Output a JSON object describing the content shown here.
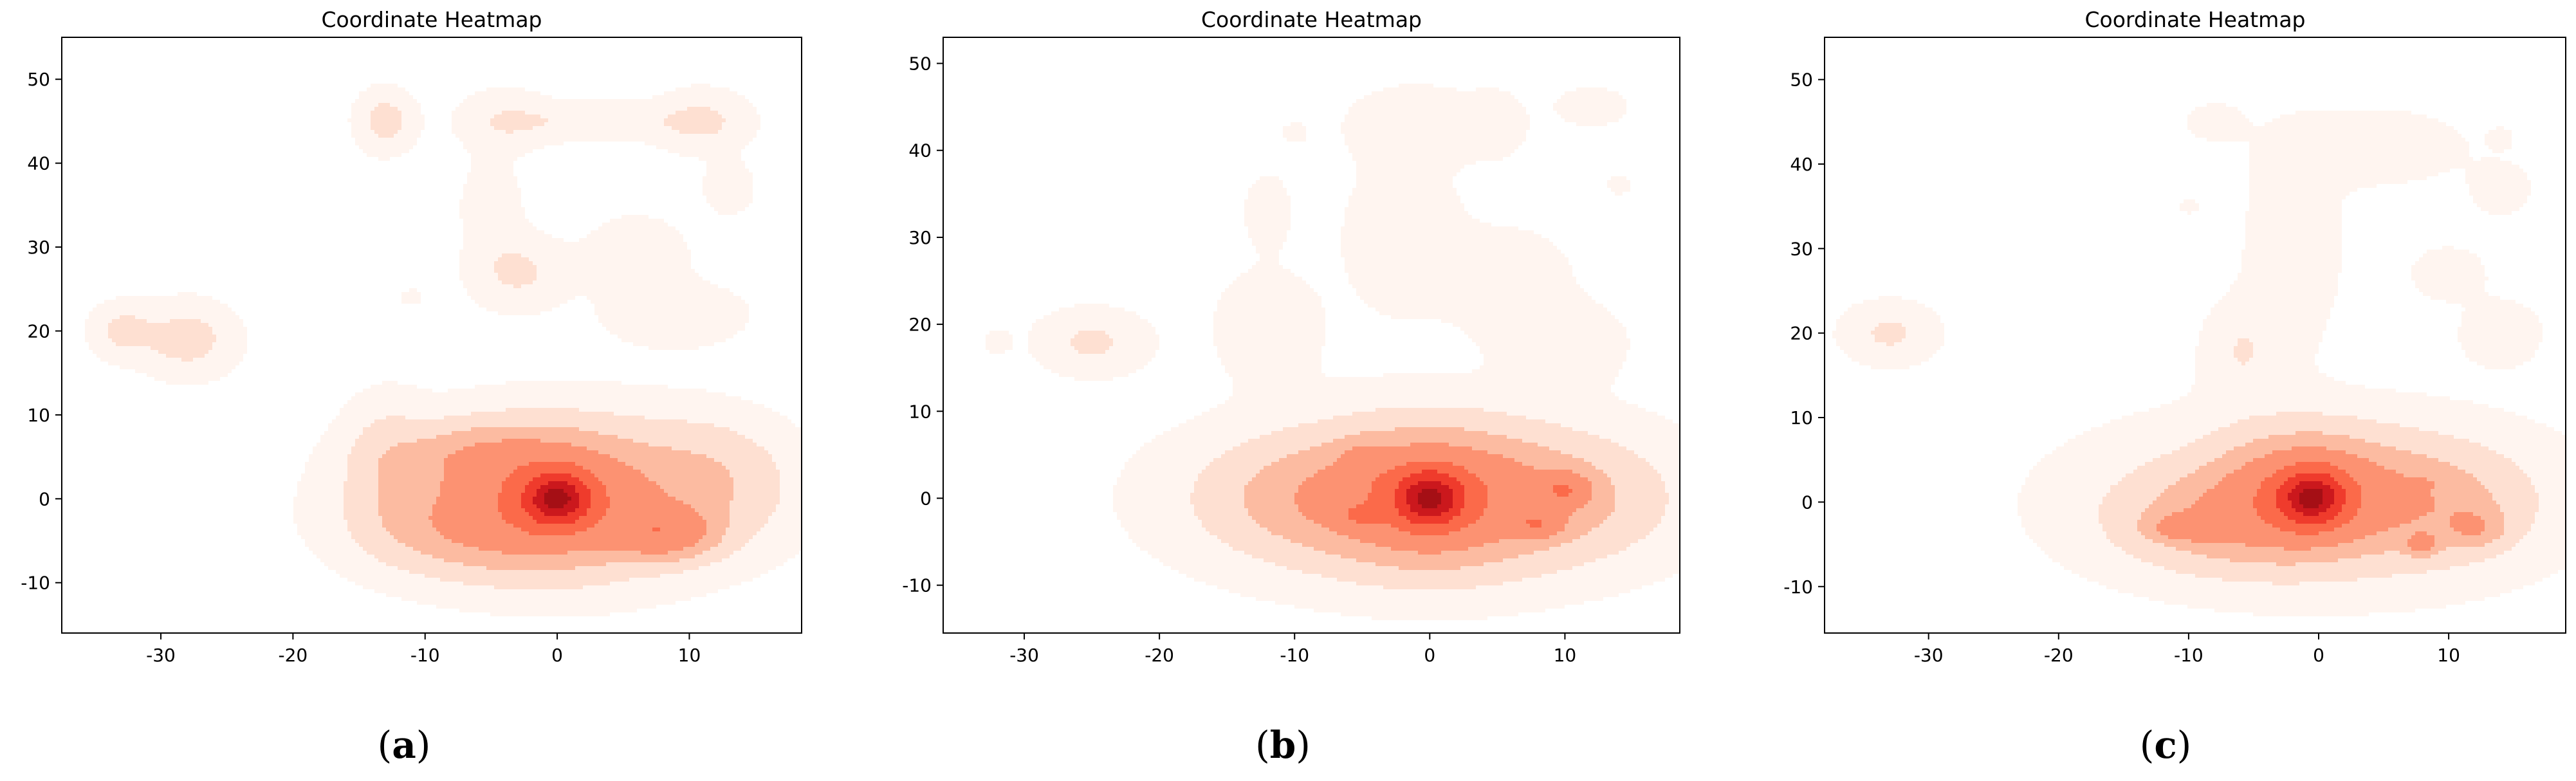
{
  "chart_data": [
    {
      "type": "heatmap",
      "panel_label": "(a)",
      "caption": {
        "open": "(",
        "letter": "a",
        "close": ")"
      },
      "title": "Coordinate Heatmap",
      "xlabel": "",
      "ylabel": "",
      "xlim": [
        -37.5,
        18.5
      ],
      "ylim": [
        -16,
        55
      ],
      "xticks": [
        -30,
        -20,
        -10,
        0,
        10
      ],
      "yticks": [
        -10,
        0,
        10,
        20,
        30,
        40,
        50
      ],
      "grid": false,
      "colormap": [
        "#fff5f0",
        "#fee0d2",
        "#fcbba1",
        "#fc9272",
        "#fb6a4a",
        "#ef3b2c",
        "#cb181d",
        "#a50f15"
      ],
      "density_peak": {
        "x": 0,
        "y": 0
      },
      "density_components": [
        {
          "x": 0,
          "y": 0,
          "sx": 1.6,
          "sy": 2.0,
          "w": 1.0
        },
        {
          "x": 0,
          "y": 0,
          "sx": 4.5,
          "sy": 4.5,
          "w": 0.32
        },
        {
          "x": 8,
          "y": -4,
          "sx": 2.5,
          "sy": 2.0,
          "w": 0.25
        },
        {
          "x": -7,
          "y": -3,
          "sx": 4.5,
          "sy": 3.5,
          "w": 0.13
        },
        {
          "x": -6,
          "y": 5,
          "sx": 4.0,
          "sy": 2.5,
          "w": 0.12
        },
        {
          "x": 11,
          "y": 2,
          "sx": 4.0,
          "sy": 4.5,
          "w": 0.08
        },
        {
          "x": 0,
          "y": 0,
          "sx": 10,
          "sy": 7,
          "w": 0.07
        },
        {
          "x": -13,
          "y": 4,
          "sx": 2.0,
          "sy": 5.0,
          "w": 0.05
        },
        {
          "x": -28,
          "y": 19,
          "sx": 2.5,
          "sy": 3.0,
          "w": 0.06
        },
        {
          "x": -33,
          "y": 20,
          "sx": 1.6,
          "sy": 2.2,
          "w": 0.05
        },
        {
          "x": -13,
          "y": 45,
          "sx": 1.5,
          "sy": 2.5,
          "w": 0.06
        },
        {
          "x": -11,
          "y": 24,
          "sx": 0.5,
          "sy": 0.6,
          "w": 0.04
        },
        {
          "x": -3,
          "y": 27,
          "sx": 2.5,
          "sy": 3.0,
          "w": 0.05
        },
        {
          "x": -5,
          "y": 35,
          "sx": 1.5,
          "sy": 3.5,
          "w": 0.035
        },
        {
          "x": -4,
          "y": 45,
          "sx": 2.5,
          "sy": 2.5,
          "w": 0.04
        },
        {
          "x": 3,
          "y": 45,
          "sx": 4.0,
          "sy": 1.5,
          "w": 0.04
        },
        {
          "x": 11,
          "y": 45,
          "sx": 2.5,
          "sy": 2.5,
          "w": 0.05
        },
        {
          "x": 13,
          "y": 37,
          "sx": 1.2,
          "sy": 2.0,
          "w": 0.04
        },
        {
          "x": 6,
          "y": 29,
          "sx": 2.5,
          "sy": 3.0,
          "w": 0.04
        },
        {
          "x": 9,
          "y": 22,
          "sx": 3.5,
          "sy": 2.5,
          "w": 0.04
        }
      ]
    },
    {
      "type": "heatmap",
      "panel_label": "(b)",
      "caption": {
        "open": "(",
        "letter": "b",
        "close": ")"
      },
      "title": "Coordinate Heatmap",
      "xlabel": "",
      "ylabel": "",
      "xlim": [
        -36,
        18.5
      ],
      "ylim": [
        -15.5,
        53
      ],
      "xticks": [
        -30,
        -20,
        -10,
        0,
        10
      ],
      "yticks": [
        -10,
        0,
        10,
        20,
        30,
        40,
        50
      ],
      "grid": false,
      "colormap": [
        "#fff5f0",
        "#fee0d2",
        "#fcbba1",
        "#fc9272",
        "#fb6a4a",
        "#ef3b2c",
        "#cb181d",
        "#a50f15"
      ],
      "density_peak": {
        "x": 0,
        "y": 0
      },
      "density_components": [
        {
          "x": 0,
          "y": 0,
          "sx": 1.6,
          "sy": 2.0,
          "w": 1.0
        },
        {
          "x": 0,
          "y": 0,
          "sx": 4.5,
          "sy": 4.5,
          "w": 0.3
        },
        {
          "x": 10,
          "y": 1,
          "sx": 1.2,
          "sy": 1.2,
          "w": 0.22
        },
        {
          "x": 8,
          "y": -3,
          "sx": 1.2,
          "sy": 1.0,
          "w": 0.2
        },
        {
          "x": -5,
          "y": -2,
          "sx": 1.0,
          "sy": 0.8,
          "w": 0.18
        },
        {
          "x": -5,
          "y": 4,
          "sx": 1.0,
          "sy": 1.5,
          "w": 0.1
        },
        {
          "x": -8,
          "y": 0,
          "sx": 5.0,
          "sy": 4.0,
          "w": 0.12
        },
        {
          "x": 8,
          "y": 0,
          "sx": 5.0,
          "sy": 4.0,
          "w": 0.12
        },
        {
          "x": 0,
          "y": 0,
          "sx": 12,
          "sy": 7,
          "w": 0.07
        },
        {
          "x": -12,
          "y": 20,
          "sx": 2.5,
          "sy": 4.0,
          "w": 0.04
        },
        {
          "x": -2,
          "y": 30,
          "sx": 3.0,
          "sy": 6.0,
          "w": 0.035
        },
        {
          "x": 6,
          "y": 25,
          "sx": 3.0,
          "sy": 4.0,
          "w": 0.035
        },
        {
          "x": 10,
          "y": 18,
          "sx": 3.0,
          "sy": 3.0,
          "w": 0.035
        },
        {
          "x": -1,
          "y": 43,
          "sx": 3.5,
          "sy": 3.0,
          "w": 0.035
        },
        {
          "x": 5,
          "y": 43,
          "sx": 1.5,
          "sy": 2.5,
          "w": 0.03
        },
        {
          "x": 12,
          "y": 45,
          "sx": 1.8,
          "sy": 1.5,
          "w": 0.035
        },
        {
          "x": 14,
          "y": 36,
          "sx": 0.6,
          "sy": 0.8,
          "w": 0.03
        },
        {
          "x": -10,
          "y": 42,
          "sx": 0.6,
          "sy": 0.8,
          "w": 0.03
        },
        {
          "x": -12,
          "y": 33,
          "sx": 1.2,
          "sy": 3.0,
          "w": 0.03
        },
        {
          "x": -25,
          "y": 18,
          "sx": 2.8,
          "sy": 2.5,
          "w": 0.05
        },
        {
          "x": -32,
          "y": 18,
          "sx": 0.6,
          "sy": 0.8,
          "w": 0.04
        }
      ]
    },
    {
      "type": "heatmap",
      "panel_label": "(c)",
      "caption": {
        "open": "(",
        "letter": "c",
        "close": ")"
      },
      "title": "Coordinate Heatmap",
      "xlabel": "",
      "ylabel": "",
      "xlim": [
        -38,
        19
      ],
      "ylim": [
        -15.5,
        55
      ],
      "xticks": [
        -30,
        -20,
        -10,
        0,
        10
      ],
      "yticks": [
        -10,
        0,
        10,
        20,
        30,
        40,
        50
      ],
      "grid": false,
      "colormap": [
        "#fff5f0",
        "#fee0d2",
        "#fcbba1",
        "#fc9272",
        "#fb6a4a",
        "#ef3b2c",
        "#cb181d",
        "#a50f15"
      ],
      "density_peak": {
        "x": 0,
        "y": 0
      },
      "density_components": [
        {
          "x": -0.5,
          "y": 0.5,
          "sx": 1.6,
          "sy": 2.0,
          "w": 1.0
        },
        {
          "x": -1,
          "y": 1,
          "sx": 4.0,
          "sy": 4.0,
          "w": 0.32
        },
        {
          "x": -10,
          "y": -3,
          "sx": 1.8,
          "sy": 1.0,
          "w": 0.2
        },
        {
          "x": 8,
          "y": 2,
          "sx": 0.4,
          "sy": 0.4,
          "w": 0.15
        },
        {
          "x": 8,
          "y": -5,
          "sx": 0.8,
          "sy": 0.8,
          "w": 0.18
        },
        {
          "x": 12,
          "y": -3,
          "sx": 1.5,
          "sy": 1.5,
          "w": 0.12
        },
        {
          "x": -7,
          "y": -2,
          "sx": 5.0,
          "sy": 3.5,
          "w": 0.13
        },
        {
          "x": 8,
          "y": 0,
          "sx": 4.5,
          "sy": 4.0,
          "w": 0.12
        },
        {
          "x": 0,
          "y": 0,
          "sx": 12,
          "sy": 7,
          "w": 0.07
        },
        {
          "x": -6,
          "y": 18,
          "sx": 2.0,
          "sy": 4.0,
          "w": 0.04
        },
        {
          "x": -2,
          "y": 30,
          "sx": 2.5,
          "sy": 8.0,
          "w": 0.035
        },
        {
          "x": 4,
          "y": 42,
          "sx": 5.0,
          "sy": 3.0,
          "w": 0.035
        },
        {
          "x": -8,
          "y": 45,
          "sx": 1.5,
          "sy": 1.5,
          "w": 0.03
        },
        {
          "x": 10,
          "y": 27,
          "sx": 1.8,
          "sy": 2.0,
          "w": 0.04
        },
        {
          "x": 14,
          "y": 20,
          "sx": 2.0,
          "sy": 2.5,
          "w": 0.04
        },
        {
          "x": 14,
          "y": 37,
          "sx": 1.5,
          "sy": 2.0,
          "w": 0.035
        },
        {
          "x": 14,
          "y": 43,
          "sx": 0.6,
          "sy": 0.8,
          "w": 0.03
        },
        {
          "x": -10,
          "y": 35,
          "sx": 0.5,
          "sy": 0.6,
          "w": 0.03
        },
        {
          "x": -33,
          "y": 20,
          "sx": 2.5,
          "sy": 2.5,
          "w": 0.05
        }
      ]
    }
  ]
}
